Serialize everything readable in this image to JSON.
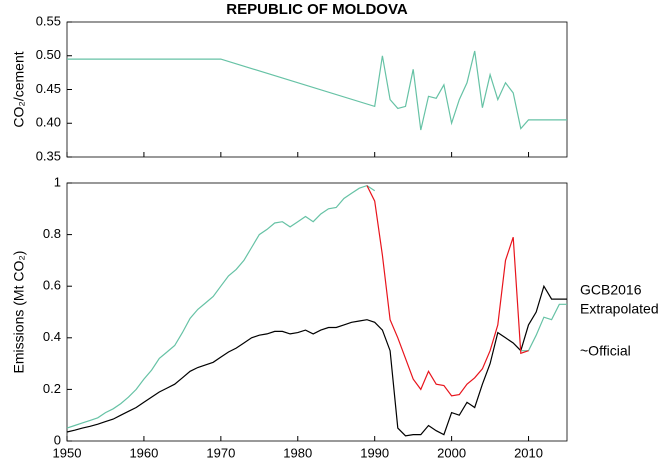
{
  "chart_data": [
    {
      "type": "line",
      "title": "REPUBLIC OF MOLDOVA",
      "y_label": "CO₂/cement",
      "x": [
        1950,
        1970,
        1990,
        1991,
        1992,
        1993,
        1994,
        1995,
        1996,
        1997,
        1998,
        1999,
        2000,
        2001,
        2002,
        2003,
        2004,
        2005,
        2006,
        2007,
        2008,
        2009,
        2010,
        2015
      ],
      "series": [
        {
          "color": "#66c2a5",
          "values": [
            0.495,
            0.495,
            0.425,
            0.5,
            0.435,
            0.422,
            0.425,
            0.48,
            0.39,
            0.44,
            0.437,
            0.457,
            0.4,
            0.435,
            0.46,
            0.507,
            0.423,
            0.472,
            0.435,
            0.46,
            0.445,
            0.392,
            0.405,
            0.405
          ]
        }
      ],
      "xlim": [
        1950,
        2015
      ],
      "xticks": [
        1950,
        1960,
        1970,
        1980,
        1990,
        2000,
        2010
      ],
      "ylim": [
        0.35,
        0.55
      ],
      "yticks": [
        0.35,
        {
          "value": 0.4,
          "label": "0.40"
        },
        0.45,
        {
          "value": 0.5,
          "label": "0.50"
        },
        0.55
      ]
    },
    {
      "type": "line",
      "y_label": "Emissions (Mt CO₂)",
      "x": [
        1950,
        1951,
        1952,
        1953,
        1954,
        1955,
        1956,
        1957,
        1958,
        1959,
        1960,
        1961,
        1962,
        1963,
        1964,
        1965,
        1966,
        1967,
        1968,
        1969,
        1970,
        1971,
        1972,
        1973,
        1974,
        1975,
        1976,
        1977,
        1978,
        1979,
        1980,
        1981,
        1982,
        1983,
        1984,
        1985,
        1986,
        1987,
        1988,
        1989,
        1990,
        1991,
        1992,
        1993,
        1994,
        1995,
        1996,
        1997,
        1998,
        1999,
        2000,
        2001,
        2002,
        2003,
        2004,
        2005,
        2006,
        2007,
        2008,
        2009,
        2010,
        2011,
        2012,
        2013,
        2014,
        2015
      ],
      "series": [
        {
          "name": "GCB2016",
          "color": "#000000",
          "values": [
            0.035,
            0.042,
            0.05,
            0.057,
            0.065,
            0.075,
            0.085,
            0.1,
            0.115,
            0.13,
            0.15,
            0.17,
            0.19,
            0.205,
            0.22,
            0.245,
            0.27,
            0.285,
            0.295,
            0.305,
            0.325,
            0.345,
            0.36,
            0.38,
            0.4,
            0.41,
            0.415,
            0.425,
            0.425,
            0.415,
            0.42,
            0.43,
            0.415,
            0.43,
            0.44,
            0.44,
            0.45,
            0.46,
            0.465,
            0.47,
            0.46,
            0.43,
            0.35,
            0.05,
            0.02,
            0.025,
            0.025,
            0.06,
            0.04,
            0.025,
            0.11,
            0.1,
            0.15,
            0.13,
            0.22,
            0.3,
            0.42,
            0.4,
            0.38,
            0.35,
            0.45,
            0.5,
            0.6,
            0.55,
            0.55,
            0.55
          ]
        },
        {
          "name": "Extrapolated",
          "color": "#66c2a5",
          "values": [
            0.05,
            0.06,
            0.07,
            0.08,
            0.09,
            0.11,
            0.125,
            0.145,
            0.17,
            0.2,
            0.24,
            0.275,
            0.32,
            0.345,
            0.37,
            0.42,
            0.475,
            0.51,
            0.535,
            0.56,
            0.6,
            0.64,
            0.665,
            0.7,
            0.75,
            0.8,
            0.82,
            0.845,
            0.85,
            0.83,
            0.85,
            0.87,
            0.85,
            0.88,
            0.9,
            0.905,
            0.94,
            0.96,
            0.98,
            0.99,
            0.97,
            null,
            null,
            null,
            null,
            null,
            null,
            null,
            null,
            null,
            null,
            null,
            null,
            null,
            null,
            null,
            null,
            null,
            null,
            0.35,
            0.35,
            0.41,
            0.48,
            0.47,
            0.53,
            0.53
          ]
        },
        {
          "name": "~Official",
          "color": "#e8141c",
          "values": [
            null,
            null,
            null,
            null,
            null,
            null,
            null,
            null,
            null,
            null,
            null,
            null,
            null,
            null,
            null,
            null,
            null,
            null,
            null,
            null,
            null,
            null,
            null,
            null,
            null,
            null,
            null,
            null,
            null,
            null,
            null,
            null,
            null,
            null,
            null,
            null,
            null,
            null,
            null,
            0.99,
            0.93,
            0.72,
            0.47,
            0.4,
            0.32,
            0.24,
            0.2,
            0.27,
            0.22,
            0.215,
            0.175,
            0.18,
            0.22,
            0.245,
            0.28,
            0.35,
            0.45,
            0.7,
            0.79,
            0.34,
            0.35,
            null,
            null,
            null,
            null,
            null
          ]
        }
      ],
      "xlim": [
        1950,
        2015
      ],
      "xticks": [
        1950,
        1960,
        1970,
        1980,
        1990,
        2000,
        2010
      ],
      "ylim": [
        0,
        1
      ],
      "yticks": [
        0,
        0.2,
        0.4,
        0.6,
        0.8,
        1
      ]
    }
  ]
}
